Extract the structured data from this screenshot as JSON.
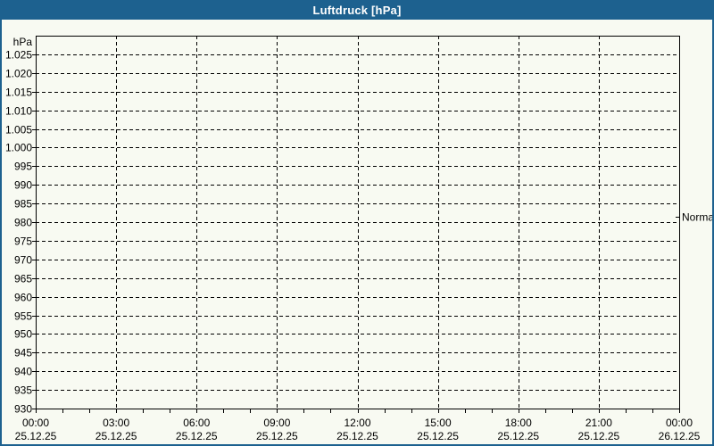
{
  "window": {
    "title": "Luftdruck [hPa]"
  },
  "colors": {
    "titlebar_bg": "#1d618f",
    "titlebar_text": "#ffffff",
    "window_border": "#1d618f",
    "page_bg": "#f8faf2",
    "axis": "#000000",
    "grid": "#000000",
    "label_text": "#000000"
  },
  "chart_data": {
    "type": "line",
    "title": "Luftdruck [hPa]",
    "y_unit_label": "hPa",
    "ylabel": "hPa",
    "ylim": [
      930,
      1030
    ],
    "y_tick_step": 5,
    "y_tick_values": [
      1025,
      1020,
      1015,
      1010,
      1005,
      1000,
      995,
      990,
      985,
      980,
      975,
      970,
      965,
      960,
      955,
      950,
      945,
      940,
      935,
      930
    ],
    "y_tick_labels": [
      "1.025",
      "1.020",
      "1.015",
      "1.010",
      "1.005",
      "1.000",
      "995",
      "990",
      "985",
      "980",
      "975",
      "970",
      "965",
      "960",
      "955",
      "950",
      "945",
      "940",
      "935",
      "930"
    ],
    "x_start": "25.12.25 00:00",
    "x_end": "26.12.25 00:00",
    "x_major_step_hours": 3,
    "x_minor_step_hours": 1,
    "x_ticks": [
      {
        "time": "00:00",
        "date": "25.12.25"
      },
      {
        "time": "03:00",
        "date": "25.12.25"
      },
      {
        "time": "06:00",
        "date": "25.12.25"
      },
      {
        "time": "09:00",
        "date": "25.12.25"
      },
      {
        "time": "12:00",
        "date": "25.12.25"
      },
      {
        "time": "15:00",
        "date": "25.12.25"
      },
      {
        "time": "18:00",
        "date": "25.12.25"
      },
      {
        "time": "21:00",
        "date": "25.12.25"
      },
      {
        "time": "00:00",
        "date": "26.12.25"
      }
    ],
    "grid": "dashed",
    "legend": null,
    "series": [],
    "annotations": [
      {
        "label": "Normal",
        "value": 981.4,
        "side": "right"
      }
    ]
  }
}
